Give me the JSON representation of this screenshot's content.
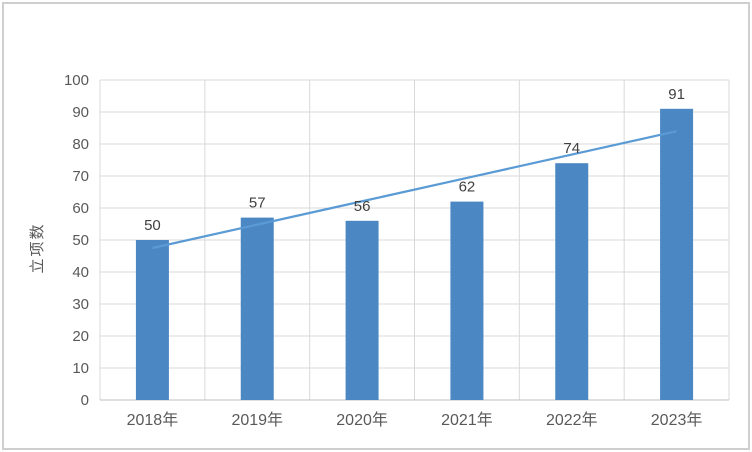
{
  "page": {
    "background": "#ffffff",
    "border_color": "#cfcfcf"
  },
  "chart_data": {
    "type": "bar",
    "title": "",
    "categories": [
      "2018年",
      "2019年",
      "2020年",
      "2021年",
      "2022年",
      "2023年"
    ],
    "series": [
      {
        "name": "立项数",
        "type": "bar",
        "values": [
          50,
          57,
          56,
          62,
          74,
          91
        ]
      },
      {
        "name": "线性趋势线",
        "type": "line",
        "values": [
          47.5,
          54.8,
          62.1,
          69.4,
          76.7,
          84.0
        ]
      }
    ],
    "data_labels": [
      "50",
      "57",
      "56",
      "62",
      "74",
      "91"
    ],
    "xlabel": "",
    "ylabel": "立项数",
    "ylim": [
      0,
      100
    ],
    "ytick_step": 10,
    "yticks": [
      "0",
      "10",
      "20",
      "30",
      "40",
      "50",
      "60",
      "70",
      "80",
      "90",
      "100"
    ],
    "grid": true,
    "legend_position": "none",
    "colors": {
      "bar": "#4b87c2",
      "line": "#5b9bd5",
      "gridline": "#d9d9d9",
      "axis": "#bfbfbf",
      "tick_text": "#595959",
      "label_text": "#404040",
      "axis_title_text": "#595959"
    }
  }
}
